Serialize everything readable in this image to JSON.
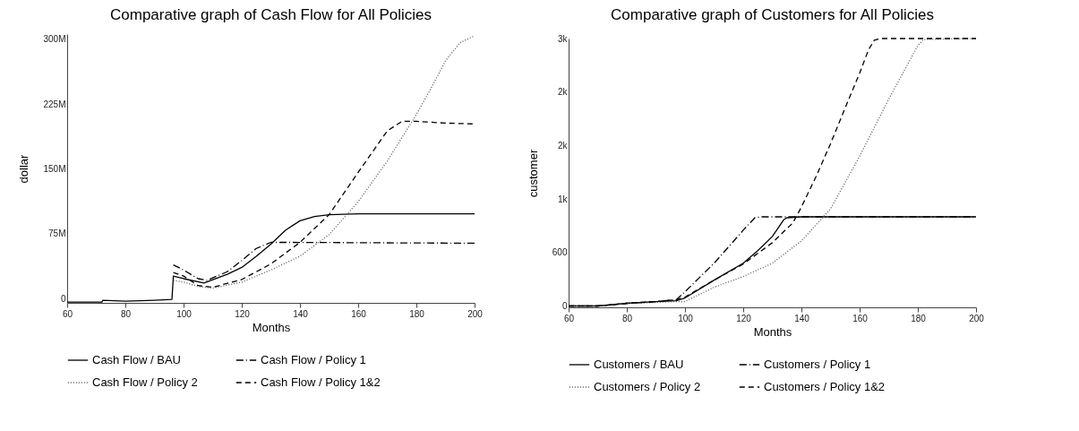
{
  "chart_data": [
    {
      "type": "line",
      "title": "Comparative graph of Cash Flow for All Policies",
      "xlabel": "Months",
      "ylabel": "dollar",
      "xlim": [
        60,
        200
      ],
      "xticks": [
        60,
        80,
        100,
        120,
        140,
        160,
        180,
        200
      ],
      "ylim": [
        -5,
        306
      ],
      "yticks": [
        {
          "value": 0,
          "label": "0"
        },
        {
          "value": 75,
          "label": "75M"
        },
        {
          "value": 150,
          "label": "150M"
        },
        {
          "value": 225,
          "label": "225M"
        },
        {
          "value": 300,
          "label": "300M"
        }
      ],
      "grid": false,
      "legend": "bottom",
      "series": [
        {
          "name": "Cash Flow / BAU",
          "color": "#000000",
          "line_style": "solid",
          "x": [
            60,
            72,
            72.2,
            80,
            90,
            96,
            96.5,
            100,
            107,
            115,
            120,
            125,
            130,
            135,
            140,
            145,
            150,
            160,
            200
          ],
          "values": [
            -4,
            -4,
            -2,
            -3,
            -2,
            -1,
            26,
            23,
            18,
            28,
            36,
            49,
            63,
            79,
            90,
            95,
            97,
            98,
            98
          ]
        },
        {
          "name": "Cash Flow / Policy 1",
          "color": "#000000",
          "line_style": "dashdot",
          "x": [
            96.5,
            100,
            105,
            108,
            115,
            120,
            125,
            130,
            135,
            200
          ],
          "values": [
            39,
            33,
            23,
            21,
            31,
            44,
            58,
            65,
            65,
            64
          ]
        },
        {
          "name": "Cash Flow / Policy 2",
          "color": "#555555",
          "line_style": "dotted",
          "x": [
            96.5,
            100,
            105,
            110,
            120,
            130,
            140,
            150,
            160,
            170,
            180,
            185,
            190,
            195,
            200
          ],
          "values": [
            21,
            19,
            14,
            12,
            19,
            33,
            49,
            74,
            112,
            159,
            213,
            243,
            275,
            296,
            304
          ]
        },
        {
          "name": "Cash Flow / Policy 1&2",
          "color": "#000000",
          "line_style": "dashed",
          "x": [
            96.5,
            100,
            105,
            110,
            120,
            130,
            140,
            150,
            160,
            170,
            175,
            180,
            190,
            200
          ],
          "values": [
            30,
            26,
            15,
            13,
            22,
            40,
            65,
            97,
            146,
            194,
            205,
            205,
            203,
            202
          ]
        }
      ]
    },
    {
      "type": "line",
      "title": "Comparative graph of Customers for All Policies",
      "xlabel": "Months",
      "ylabel": "customer",
      "xlim": [
        60,
        200
      ],
      "xticks": [
        60,
        80,
        100,
        120,
        140,
        160,
        180,
        200
      ],
      "ylim": [
        -15,
        3000
      ],
      "yticks": [
        {
          "value": 0,
          "label": "0"
        },
        {
          "value": 600,
          "label": "600"
        },
        {
          "value": 1200,
          "label": "1k"
        },
        {
          "value": 1800,
          "label": "2k"
        },
        {
          "value": 2400,
          "label": "2k"
        },
        {
          "value": 3000,
          "label": "3k"
        }
      ],
      "grid": false,
      "legend": "bottom",
      "series": [
        {
          "name": "Customers / BAU",
          "color": "#000000",
          "line_style": "solid",
          "x": [
            60,
            70,
            80,
            90,
            97,
            100,
            110,
            120,
            125,
            130,
            134,
            135,
            140,
            200
          ],
          "values": [
            0,
            0,
            30,
            50,
            60,
            90,
            290,
            480,
            620,
            780,
            970,
            990,
            1000,
            1000
          ]
        },
        {
          "name": "Customers / Policy 1",
          "color": "#000000",
          "line_style": "dashdot",
          "x": [
            60,
            70,
            80,
            90,
            97,
            100,
            110,
            120,
            124,
            126,
            200
          ],
          "values": [
            0,
            0,
            30,
            50,
            70,
            160,
            480,
            850,
            990,
            1000,
            1000
          ]
        },
        {
          "name": "Customers / Policy 2",
          "color": "#555555",
          "line_style": "dotted",
          "x": [
            60,
            70,
            80,
            90,
            97,
            100,
            110,
            120,
            130,
            140,
            150,
            160,
            170,
            180,
            182,
            200
          ],
          "values": [
            0,
            0,
            30,
            40,
            50,
            50,
            210,
            330,
            480,
            730,
            1090,
            1680,
            2320,
            2920,
            2990,
            3000
          ]
        },
        {
          "name": "Customers / Policy 1&2",
          "color": "#000000",
          "line_style": "dashed",
          "x": [
            60,
            70,
            80,
            90,
            97,
            100,
            110,
            120,
            130,
            137,
            140,
            145,
            150,
            155,
            160,
            163,
            165,
            167,
            200
          ],
          "values": [
            0,
            0,
            30,
            50,
            70,
            100,
            290,
            470,
            710,
            930,
            1110,
            1450,
            1820,
            2220,
            2610,
            2870,
            2980,
            3000,
            3000
          ]
        }
      ]
    }
  ]
}
